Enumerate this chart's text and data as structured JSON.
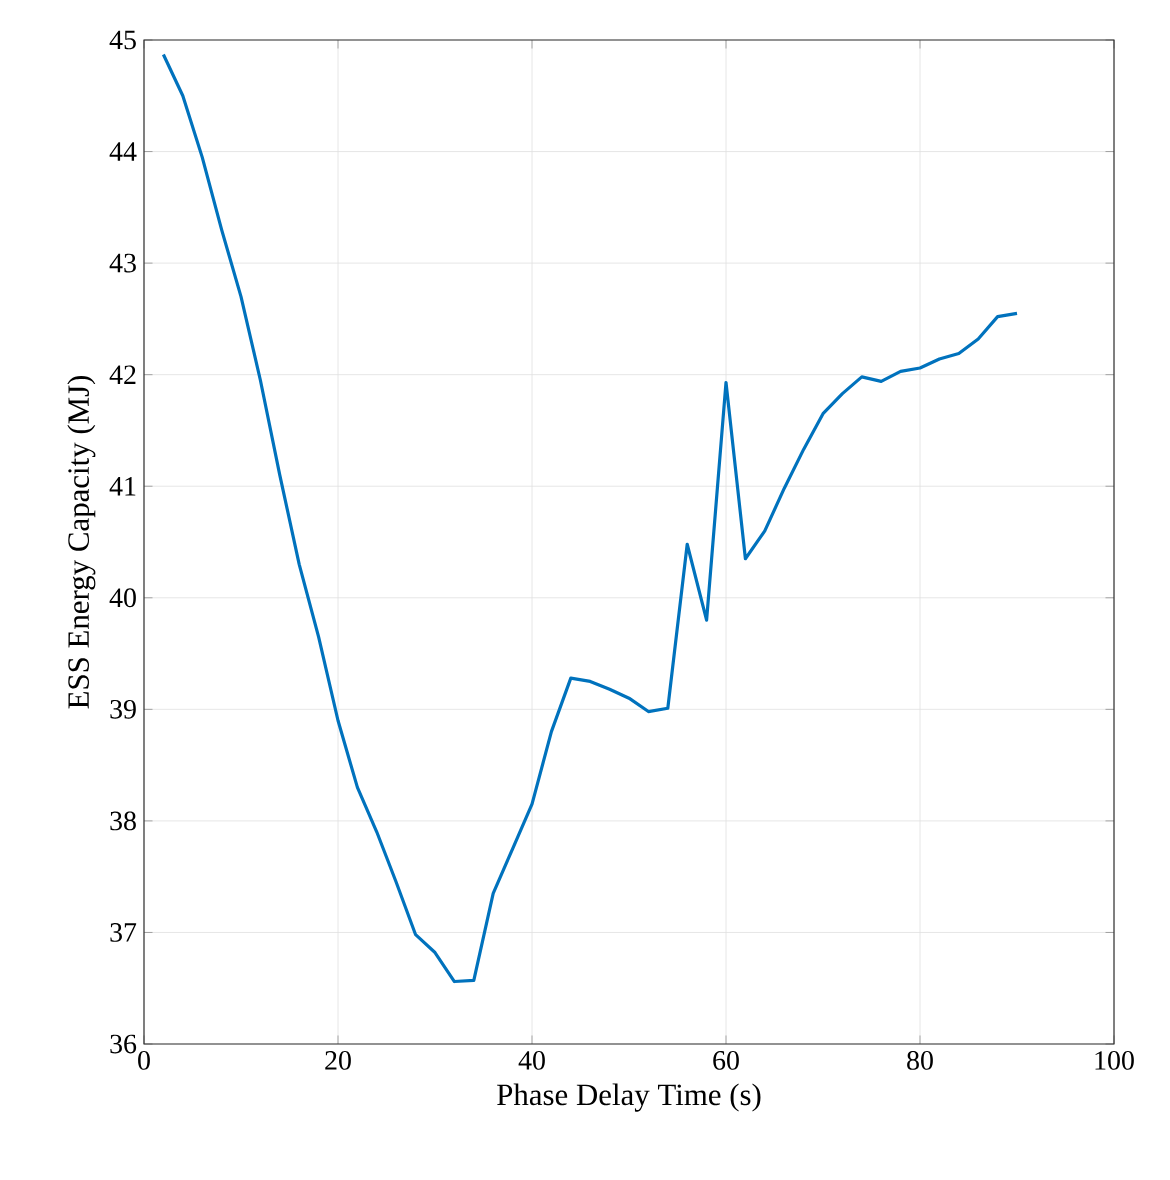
{
  "chart_data": {
    "type": "line",
    "xlabel": "Phase Delay Time (s)",
    "ylabel": "ESS Energy Capacity (MJ)",
    "xlim": [
      0,
      100
    ],
    "ylim": [
      36,
      45
    ],
    "xticks": [
      0,
      20,
      40,
      60,
      80,
      100
    ],
    "yticks": [
      36,
      37,
      38,
      39,
      40,
      41,
      42,
      43,
      44,
      45
    ],
    "grid": true,
    "x": [
      2,
      4,
      6,
      8,
      10,
      12,
      14,
      16,
      18,
      20,
      22,
      24,
      26,
      28,
      30,
      32,
      34,
      36,
      38,
      40,
      42,
      44,
      46,
      48,
      50,
      52,
      54,
      56,
      58,
      60,
      62,
      64,
      66,
      68,
      70,
      72,
      74,
      76,
      78,
      80,
      82,
      84,
      86,
      88,
      90
    ],
    "series": [
      {
        "color": "#0072bd",
        "values": [
          44.87,
          44.5,
          43.95,
          43.3,
          42.7,
          41.95,
          41.1,
          40.3,
          39.65,
          38.9,
          38.3,
          37.9,
          37.45,
          36.98,
          36.82,
          36.56,
          36.57,
          37.35,
          37.75,
          38.15,
          38.8,
          39.28,
          39.25,
          39.18,
          39.1,
          38.98,
          39.01,
          40.48,
          39.8,
          41.93,
          40.35,
          40.6,
          40.98,
          41.33,
          41.65,
          41.83,
          41.98,
          41.94,
          42.03,
          42.06,
          42.14,
          42.19,
          42.32,
          42.52,
          42.55
        ]
      }
    ]
  }
}
